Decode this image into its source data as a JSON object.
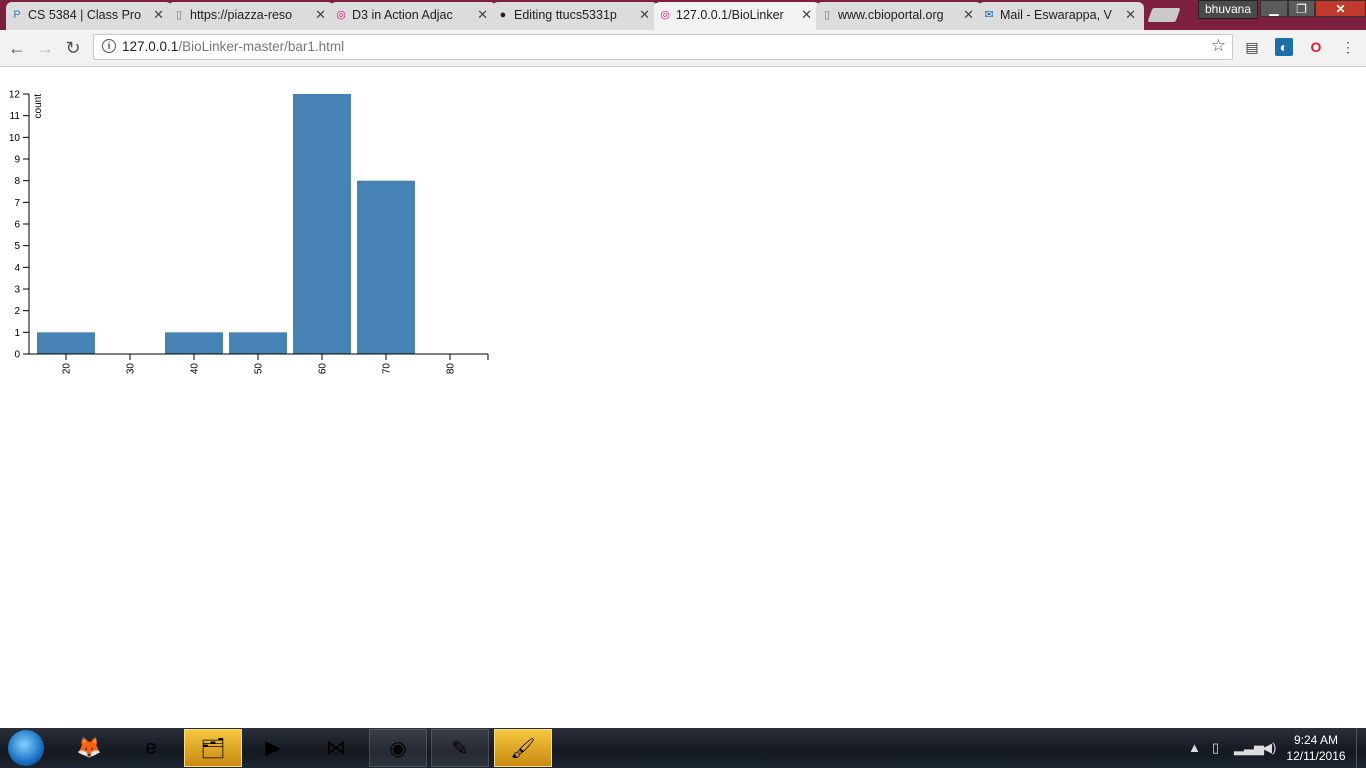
{
  "browser": {
    "tabs": [
      {
        "title": "CS 5384 | Class Pro",
        "icon": "piazza-icon",
        "icon_glyph": "P",
        "icon_color": "#3b7bbf",
        "active": false
      },
      {
        "title": "https://piazza-reso",
        "icon": "page-icon",
        "icon_glyph": "▯",
        "icon_color": "#777777",
        "active": false
      },
      {
        "title": "D3 in Action Adjac",
        "icon": "d3-icon",
        "icon_glyph": "◎",
        "icon_color": "#e0157a",
        "active": false
      },
      {
        "title": "Editing ttucs5331p",
        "icon": "github-icon",
        "icon_glyph": "●",
        "icon_color": "#222222",
        "active": false
      },
      {
        "title": "127.0.0.1/BioLinker",
        "icon": "d3-icon",
        "icon_glyph": "◎",
        "icon_color": "#e0157a",
        "active": true
      },
      {
        "title": "www.cbioportal.org",
        "icon": "page-icon",
        "icon_glyph": "▯",
        "icon_color": "#777777",
        "active": false
      },
      {
        "title": "Mail - Eswarappa, V",
        "icon": "mail-icon",
        "icon_glyph": "✉",
        "icon_color": "#1565c0",
        "active": false
      }
    ],
    "tab_close_glyph": "✕",
    "profile_name": "bhuvana",
    "window_buttons": {
      "minimize": "▁",
      "maximize": "❐",
      "close": "✕"
    },
    "nav": {
      "back": "←",
      "forward": "→",
      "reload": "↻"
    },
    "url_host": "127.0.0.1",
    "url_path": "/BioLinker-master/bar1.html",
    "star_glyph": "☆"
  },
  "chart_data": {
    "type": "bar",
    "categories": [
      "20",
      "30",
      "40",
      "50",
      "60",
      "70",
      "80"
    ],
    "values": [
      1,
      0,
      1,
      1,
      12,
      8,
      0
    ],
    "ylabel": "count",
    "xlabel": "",
    "ylim": [
      0,
      12
    ],
    "yticks": [
      "0",
      "1",
      "2",
      "3",
      "4",
      "5",
      "6",
      "7",
      "8",
      "9",
      "10",
      "11",
      "12"
    ],
    "bar_color": "#4682b4"
  },
  "taskbar": {
    "apps": [
      {
        "name": "firefox-icon",
        "glyph": "🦊"
      },
      {
        "name": "internet-explorer-icon",
        "glyph": "e"
      },
      {
        "name": "file-explorer-icon",
        "glyph": "🗂"
      },
      {
        "name": "media-player-icon",
        "glyph": "▶"
      },
      {
        "name": "visual-studio-icon",
        "glyph": "⋈"
      },
      {
        "name": "chrome-icon",
        "glyph": "◉"
      },
      {
        "name": "notepad-plus-icon",
        "glyph": "✎"
      },
      {
        "name": "paint-icon",
        "glyph": "🖌"
      }
    ],
    "time": "9:24 AM",
    "date": "12/11/2016"
  }
}
